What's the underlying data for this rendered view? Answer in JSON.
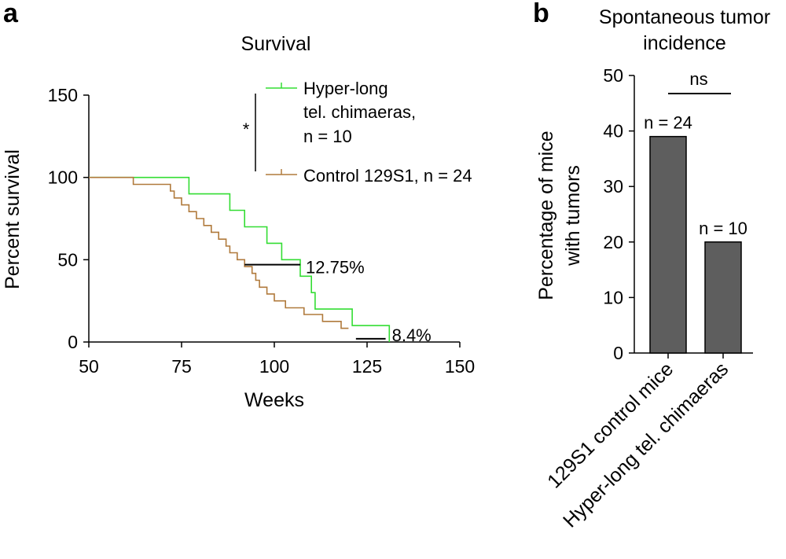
{
  "panel_a": {
    "letter": "a"
  },
  "panel_b": {
    "letter": "b"
  },
  "chart_data": [
    {
      "type": "line",
      "title": "Survival",
      "xlabel": "Weeks",
      "ylabel": "Percent survival",
      "xlim": [
        50,
        150
      ],
      "ylim": [
        0,
        150
      ],
      "xticks": [
        "50",
        "75",
        "100",
        "125",
        "150"
      ],
      "yticks": [
        "150",
        "100",
        "50",
        "0"
      ],
      "series": [
        {
          "name": "Hyper-long tel. chimaeras, n = 10",
          "legend_lines": [
            "Hyper-long",
            "tel. chimaeras,",
            "n = 10"
          ],
          "color": "#33dd33",
          "x": [
            50,
            77,
            77,
            88,
            88,
            92,
            92,
            98,
            98,
            102,
            102,
            107,
            107,
            110,
            110,
            111,
            111,
            121,
            121,
            131,
            131
          ],
          "y": [
            100,
            100,
            90,
            90,
            80,
            80,
            70,
            70,
            60,
            60,
            50,
            50,
            40,
            40,
            30,
            30,
            20,
            20,
            10,
            10,
            0
          ]
        },
        {
          "name": "Control 129S1, n = 24",
          "legend_lines": [
            "Control 129S1, n = 24"
          ],
          "color": "#b07a3c",
          "x": [
            50,
            62,
            62,
            72,
            72,
            73,
            73,
            75,
            75,
            77,
            77,
            79,
            79,
            81,
            81,
            83,
            83,
            85,
            85,
            87,
            87,
            88,
            88,
            90,
            90,
            92,
            92,
            94,
            94,
            95,
            95,
            96,
            96,
            98,
            98,
            100,
            100,
            103,
            103,
            108,
            108,
            113,
            113,
            118,
            118,
            120
          ],
          "y": [
            100,
            100,
            95.8,
            95.8,
            91.7,
            91.7,
            87.5,
            87.5,
            83.3,
            83.3,
            79.2,
            79.2,
            75,
            75,
            70.8,
            70.8,
            66.7,
            66.7,
            62.5,
            62.5,
            58.3,
            58.3,
            54.2,
            54.2,
            50,
            50,
            45.8,
            45.8,
            41.7,
            41.7,
            37.5,
            37.5,
            33.3,
            33.3,
            29.2,
            29.2,
            25,
            25,
            20.8,
            20.8,
            16.7,
            16.7,
            12.5,
            12.5,
            8.3,
            8.3
          ]
        }
      ],
      "annotations": {
        "significance": "*",
        "median_diff_label": "12.75%",
        "median_diff_x": [
          92,
          107
        ],
        "median_diff_y": 47,
        "tail_diff_label": "8.4%",
        "tail_diff_x": [
          122,
          130
        ],
        "tail_diff_y": 2
      },
      "grid": false,
      "legend_placement": "top-right"
    },
    {
      "type": "bar",
      "title_lines": [
        "Spontaneous tumor",
        "incidence"
      ],
      "xlabel": "",
      "ylabel_lines": [
        "Percentage of mice",
        "with tumors"
      ],
      "ylim": [
        0,
        50
      ],
      "yticks": [
        "0",
        "10",
        "20",
        "30",
        "40",
        "50"
      ],
      "categories": [
        "129S1 control mice",
        "Hyper-long tel. chimaeras"
      ],
      "values": [
        39,
        20
      ],
      "bar_labels": [
        "n = 24",
        "n = 10"
      ],
      "bar_color": "#5e5e5e",
      "significance": "ns",
      "grid": false
    }
  ]
}
